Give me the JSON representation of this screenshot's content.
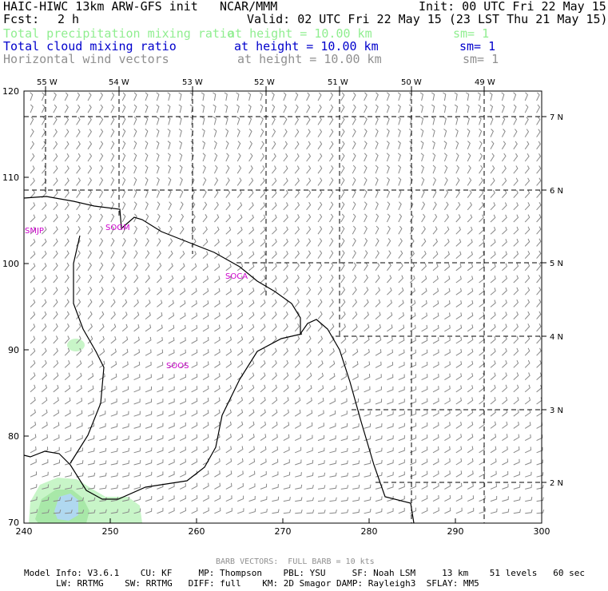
{
  "header": {
    "model_title": "HAIC-HIWC 13km ARW-GFS init",
    "org": "NCAR/MMM",
    "init": "Init: 00 UTC Fri 22 May 15",
    "fcst_label": "Fcst:",
    "fcst_value": "2 h",
    "valid": "Valid: 02 UTC Fri 22 May 15 (23 LST Thu 21 May 15)"
  },
  "fields": [
    {
      "name": "Total precipitation mixing ratio",
      "level": "at height = 10.00 km",
      "sm": "sm= 1",
      "color": "#90ee90"
    },
    {
      "name": "Total cloud mixing ratio",
      "level": "at height = 10.00 km",
      "sm": "sm= 1",
      "color": "#0000cc"
    },
    {
      "name": "Horizontal wind vectors",
      "level": "at height = 10.00 km",
      "sm": "sm= 1",
      "color": "#909090"
    }
  ],
  "map": {
    "top_labels": [
      "55 W",
      "54 W",
      "53 W",
      "52 W",
      "51 W",
      "50 W",
      "49 W"
    ],
    "right_labels": [
      "7 N",
      "6 N",
      "5 N",
      "4 N",
      "3 N",
      "2 N"
    ],
    "x_ticks": [
      "240",
      "250",
      "260",
      "270",
      "280",
      "290",
      "300"
    ],
    "y_ticks": [
      "120",
      "110",
      "100",
      "90",
      "80",
      "70"
    ],
    "stations": [
      "SMJP",
      "SOGM",
      "SOCA",
      "SOOS"
    ],
    "coast_color": "#000000",
    "station_color": "#cc00cc",
    "precip_colors": [
      "#c8f5c8",
      "#a8e8a8",
      "#b0d8f0"
    ]
  },
  "footer": {
    "barb_note": "BARB VECTORS:  FULL BARB = 10 kts",
    "line1": "Model Info: V3.6.1    CU: KF     MP: Thompson    PBL: YSU     SF: Noah LSM     13 km    51 levels   60 sec",
    "line2": "LW: RRTMG    SW: RRTMG   DIFF: full    KM: 2D Smagor DAMP: Rayleigh3  SFLAY: MM5"
  }
}
